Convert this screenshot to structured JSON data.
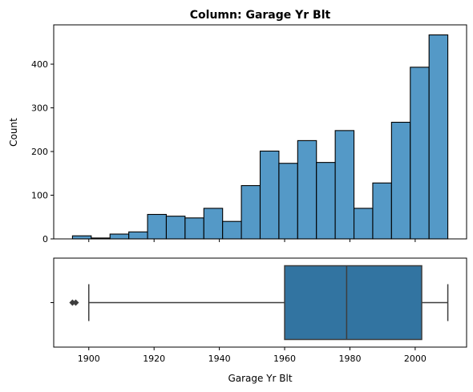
{
  "chart_data": [
    {
      "type": "bar",
      "title": "Column: Garage Yr Blt",
      "xlabel": "",
      "ylabel": "Count",
      "xlim": [
        1889.25,
        2015.75
      ],
      "ylim": [
        0,
        490
      ],
      "yticks": [
        0,
        100,
        200,
        300,
        400
      ],
      "bar_color": "#5499c7",
      "edge_color": "#000000",
      "bins": [
        {
          "start": 1895.0,
          "end": 1900.75,
          "count": 7
        },
        {
          "start": 1900.75,
          "end": 1906.5,
          "count": 2
        },
        {
          "start": 1906.5,
          "end": 1912.25,
          "count": 11
        },
        {
          "start": 1912.25,
          "end": 1918.0,
          "count": 16
        },
        {
          "start": 1918.0,
          "end": 1923.75,
          "count": 56
        },
        {
          "start": 1923.75,
          "end": 1929.5,
          "count": 52
        },
        {
          "start": 1929.5,
          "end": 1935.25,
          "count": 48
        },
        {
          "start": 1935.25,
          "end": 1941.0,
          "count": 70
        },
        {
          "start": 1941.0,
          "end": 1946.75,
          "count": 40
        },
        {
          "start": 1946.75,
          "end": 1952.5,
          "count": 122
        },
        {
          "start": 1952.5,
          "end": 1958.25,
          "count": 201
        },
        {
          "start": 1958.25,
          "end": 1964.0,
          "count": 173
        },
        {
          "start": 1964.0,
          "end": 1969.75,
          "count": 225
        },
        {
          "start": 1969.75,
          "end": 1975.5,
          "count": 175
        },
        {
          "start": 1975.5,
          "end": 1981.25,
          "count": 248
        },
        {
          "start": 1981.25,
          "end": 1987.0,
          "count": 70
        },
        {
          "start": 1987.0,
          "end": 1992.75,
          "count": 128
        },
        {
          "start": 1992.75,
          "end": 1998.5,
          "count": 267
        },
        {
          "start": 1998.5,
          "end": 2004.25,
          "count": 393
        },
        {
          "start": 2004.25,
          "end": 2010.0,
          "count": 467
        }
      ]
    },
    {
      "type": "box",
      "xlabel": "Garage Yr Blt",
      "xlim": [
        1889.25,
        2015.75
      ],
      "xticks": [
        1900,
        1920,
        1940,
        1960,
        1980,
        2000
      ],
      "box_color": "#3274a1",
      "line_color": "#3d3d3d",
      "whisker_low": 1900,
      "q1": 1960,
      "median": 1979,
      "q3": 2002,
      "whisker_high": 2010,
      "outliers": [
        1895,
        1896
      ]
    }
  ]
}
